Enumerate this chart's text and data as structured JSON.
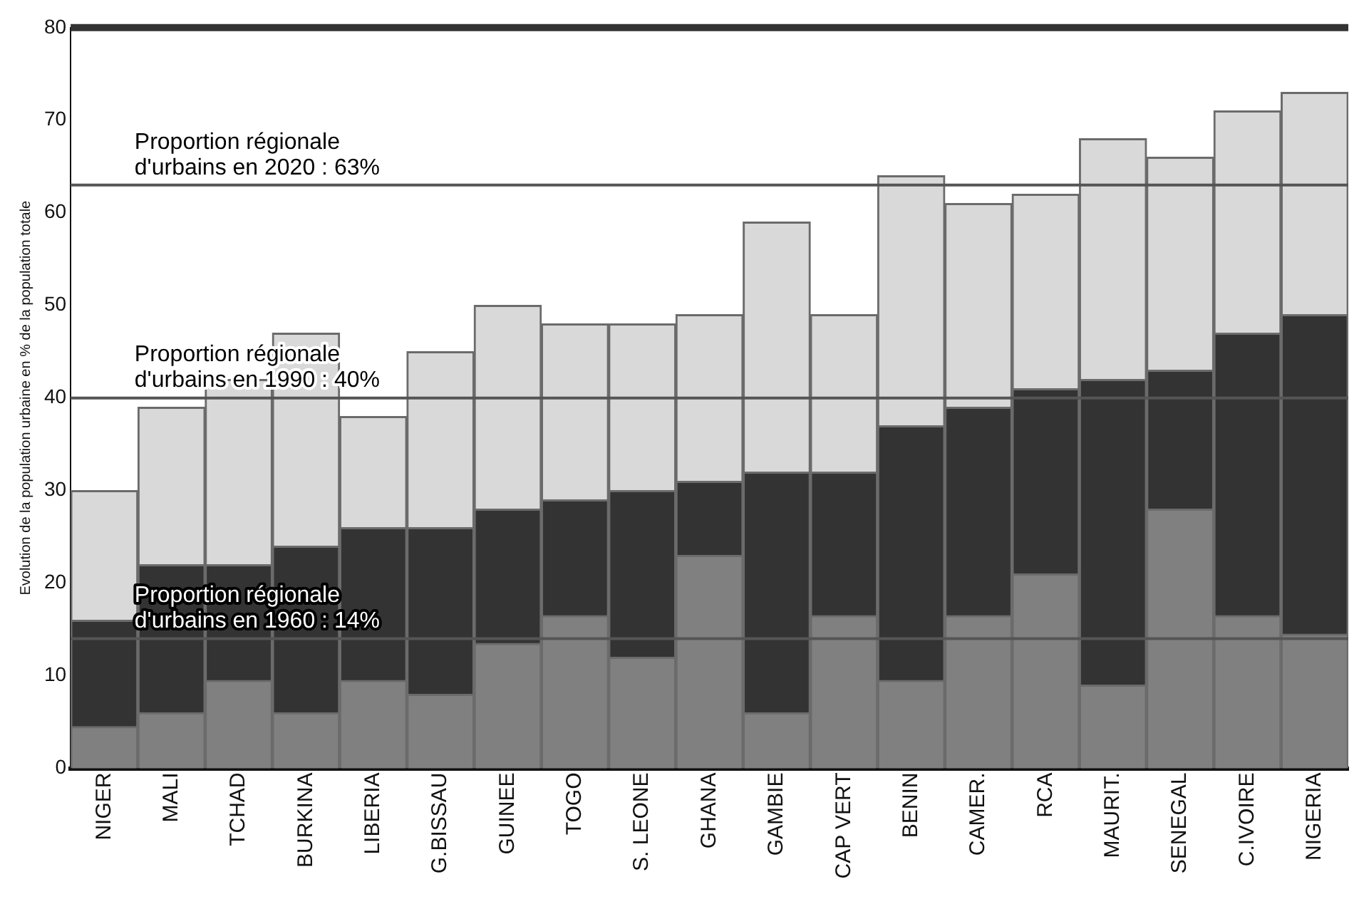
{
  "chart_data": {
    "type": "bar",
    "stacked": true,
    "ylabel": "Evolution de la population urbaine en % de la population totale",
    "categories": [
      "NIGER",
      "MALI",
      "TCHAD",
      "BURKINA",
      "LIBERIA",
      "G.BISSAU",
      "GUINEE",
      "TOGO",
      "S. LEONE",
      "GHANA",
      "GAMBIE",
      "CAP VERT",
      "BENIN",
      "CAMER.",
      "RCA",
      "MAURIT.",
      "SENEGAL",
      "C.IVOIRE",
      "NIGERIA"
    ],
    "series": [
      {
        "color": "#808080",
        "values": [
          4.5,
          6,
          9.5,
          6,
          9.5,
          8,
          13.5,
          16.5,
          12,
          23,
          6,
          16.5,
          9.5,
          16.5,
          21,
          9,
          28,
          16.5,
          14.5
        ]
      },
      {
        "color": "#333333",
        "values": [
          11.5,
          16,
          12.5,
          18,
          16.5,
          18,
          14.5,
          12.5,
          18,
          8,
          26,
          15.5,
          27.5,
          22.5,
          20,
          33,
          15,
          30.5,
          34.5
        ]
      },
      {
        "color": "#d9d9d9",
        "values": [
          14,
          17,
          20,
          23,
          12,
          19,
          22,
          19,
          18,
          18,
          27,
          17,
          27,
          22,
          21,
          26,
          23,
          24,
          24
        ]
      }
    ],
    "ylim": [
      0,
      80
    ],
    "yticks": [
      0,
      10,
      20,
      30,
      40,
      50,
      60,
      70,
      80
    ],
    "grid": false,
    "legend": false,
    "ref_lines": [
      {
        "axis": "y",
        "value": 63,
        "label": "Proportion régionale\nd'urbains en 2020 : 63%",
        "color": "#555555"
      },
      {
        "axis": "y",
        "value": 40,
        "label": "Proportion régionale\nd'urbains en 1990 : 40%",
        "color": "#555555"
      },
      {
        "axis": "y",
        "value": 14,
        "label": "Proportion régionale\nd'urbains en 1960 : 14%",
        "color": "#555555"
      }
    ]
  }
}
